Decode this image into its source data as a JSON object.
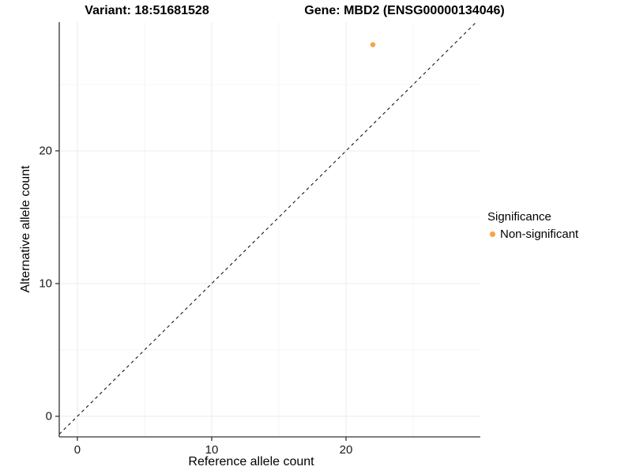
{
  "chart_data": {
    "type": "scatter",
    "title_left": "Variant: 18:51681528",
    "title_right": "Gene: MBD2 (ENSG00000134046)",
    "xlabel": "Reference allele count",
    "ylabel": "Alternative allele count",
    "xlim": [
      -1.35,
      30.0
    ],
    "ylim": [
      -1.55,
      29.7
    ],
    "x_ticks": [
      0,
      10,
      20
    ],
    "y_ticks": [
      0,
      10,
      20
    ],
    "x_minor_ticks": [
      5,
      15,
      25
    ],
    "y_minor_ticks": [
      5,
      15,
      25
    ],
    "grid": true,
    "identity_line": {
      "style": "dashed",
      "color": "#000000",
      "from": -1.35,
      "to": 29.7
    },
    "points": [
      {
        "x": 22,
        "y": 28,
        "series": "Non-significant",
        "color": "#F9A242",
        "radius": 3.2
      }
    ],
    "legend": {
      "title": "Significance",
      "position": "right",
      "items": [
        {
          "label": "Non-significant",
          "color": "#F9A242"
        }
      ]
    },
    "colors": {
      "grid_major": "#EBEBEB",
      "grid_minor": "#F4F4F4",
      "axis": "#333333",
      "text": "#000000",
      "background": "#FFFFFF"
    }
  }
}
